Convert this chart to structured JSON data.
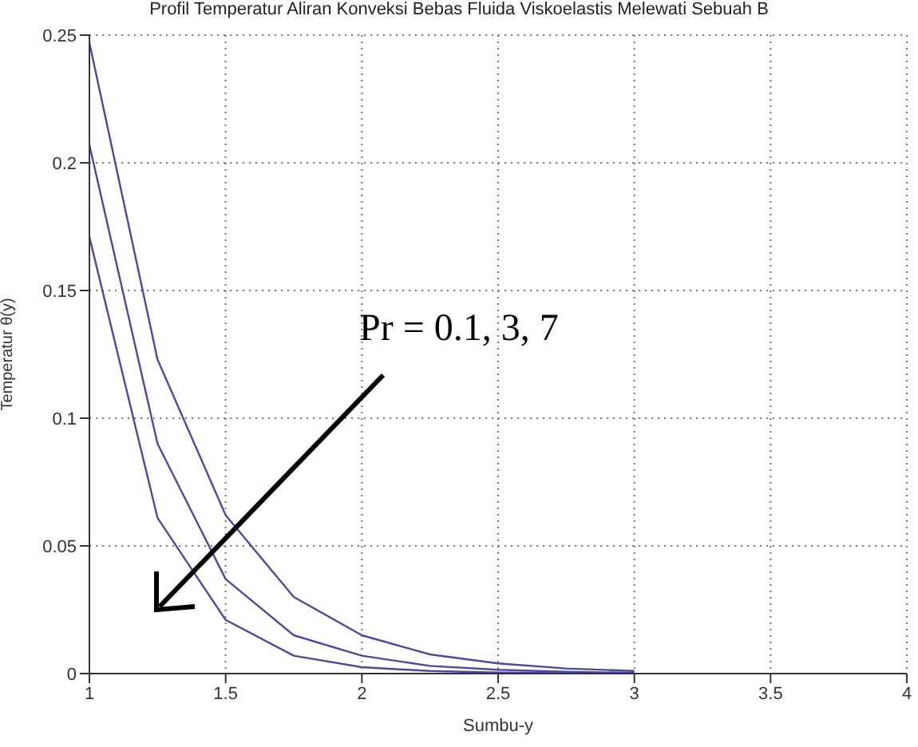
{
  "chart_data": {
    "type": "line",
    "title": "Profil Temperatur Aliran Konveksi Bebas Fluida Viskoelastis Melewati Sebuah B",
    "xlabel": "Sumbu-y",
    "ylabel": "Temperatur θ(y)",
    "x": [
      1,
      1.25,
      1.5,
      1.75,
      2,
      2.25,
      2.5,
      2.75,
      3
    ],
    "series": [
      {
        "color": "#4a4aa0",
        "values": [
          0.247,
          0.123,
          0.062,
          0.03,
          0.015,
          0.0075,
          0.004,
          0.002,
          0.001
        ]
      },
      {
        "color": "#4a4aa0",
        "values": [
          0.207,
          0.09,
          0.037,
          0.015,
          0.007,
          0.003,
          0.0015,
          0.0007,
          0.0003
        ]
      },
      {
        "color": "#4a4aa0",
        "values": [
          0.171,
          0.061,
          0.021,
          0.007,
          0.0025,
          0.001,
          0.0004,
          0.0002,
          0.0001
        ]
      }
    ],
    "xlim": [
      1,
      4
    ],
    "xticks": [
      1,
      1.5,
      2,
      2.5,
      3,
      3.5,
      4
    ],
    "ylim": [
      0,
      0.25
    ],
    "yticks": [
      0,
      0.05,
      0.1,
      0.15,
      0.2,
      0.25
    ],
    "grid": true,
    "line_style": "solid",
    "marker": "none",
    "annotations": [
      "Pr = 0.1, 3, 7"
    ]
  }
}
